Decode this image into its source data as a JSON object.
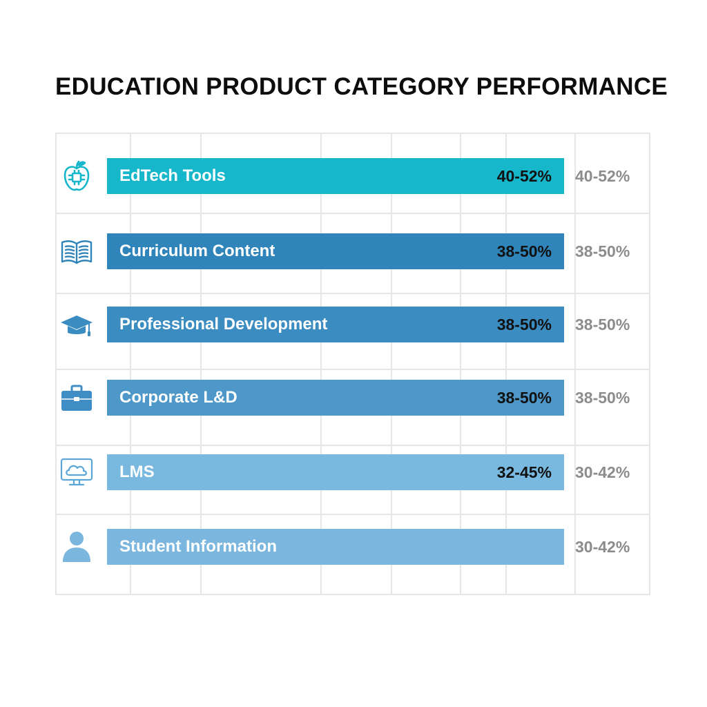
{
  "chart_data": {
    "type": "bar",
    "title": "EDUCATION PRODUCT CATEGORY PERFORMANCE",
    "categories": [
      "EdTech Tools",
      "Curriculum Content",
      "Professional Development",
      "Corporate L&D",
      "LMS",
      "Student Information"
    ],
    "series": [
      {
        "values": [
          "40-52%",
          "38-50%",
          "38-50%",
          "38-50%",
          "32-45%",
          ""
        ]
      },
      {
        "values": [
          "40-52%",
          "38-50%",
          "38-50%",
          "38-50%",
          "30-42%",
          "30-42%"
        ]
      }
    ],
    "grid": true
  },
  "rows": [
    {
      "icon": "apple-circuit-icon",
      "label": "EdTech Tools",
      "bar_value": "40-52%",
      "side_value": "40-52%",
      "color": "#16b6cb"
    },
    {
      "icon": "open-book-icon",
      "label": "Curriculum Content",
      "bar_value": "38-50%",
      "side_value": "38-50%",
      "color": "#2f84ba"
    },
    {
      "icon": "graduation-cap-icon",
      "label": "Professional Development",
      "bar_value": "38-50%",
      "side_value": "38-50%",
      "color": "#3b8cc1"
    },
    {
      "icon": "briefcase-icon",
      "label": "Corporate L&D",
      "bar_value": "38-50%",
      "side_value": "38-50%",
      "color": "#4d98c9"
    },
    {
      "icon": "cloud-monitor-icon",
      "label": "LMS",
      "bar_value": "32-45%",
      "side_value": "30-42%",
      "color": "#7ab9df"
    },
    {
      "icon": "user-icon",
      "label": "Student Information",
      "bar_value": "",
      "side_value": "30-42%",
      "color": "#7ab6dd"
    }
  ]
}
